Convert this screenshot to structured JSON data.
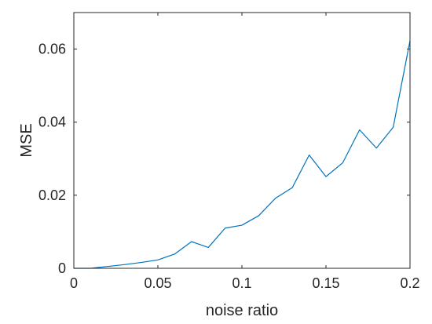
{
  "chart_data": {
    "type": "line",
    "xlabel": "noise ratio",
    "ylabel": "MSE",
    "xlim": [
      0,
      0.2
    ],
    "ylim": [
      0,
      0.07
    ],
    "grid": false,
    "x_ticks": [
      {
        "value": 0,
        "label": "0"
      },
      {
        "value": 0.05,
        "label": "0.05"
      },
      {
        "value": 0.1,
        "label": "0.1"
      },
      {
        "value": 0.15,
        "label": "0.15"
      },
      {
        "value": 0.2,
        "label": "0.2"
      }
    ],
    "y_ticks": [
      {
        "value": 0,
        "label": "0"
      },
      {
        "value": 0.02,
        "label": "0.02"
      },
      {
        "value": 0.04,
        "label": "0.04"
      },
      {
        "value": 0.06,
        "label": "0.06"
      }
    ],
    "line_color": "#0072BD",
    "series": [
      {
        "x": [
          0,
          0.01,
          0.02,
          0.03,
          0.04,
          0.05,
          0.06,
          0.07,
          0.08,
          0.09,
          0.1,
          0.11,
          0.12,
          0.13,
          0.14,
          0.15,
          0.16,
          0.17,
          0.18,
          0.19,
          0.2
        ],
        "y": [
          0,
          0,
          0.0005,
          0.001,
          0.0016,
          0.0023,
          0.0039,
          0.0073,
          0.0057,
          0.011,
          0.0118,
          0.0144,
          0.0192,
          0.0221,
          0.031,
          0.0251,
          0.0289,
          0.0379,
          0.0329,
          0.0386,
          0.0623
        ]
      }
    ]
  }
}
